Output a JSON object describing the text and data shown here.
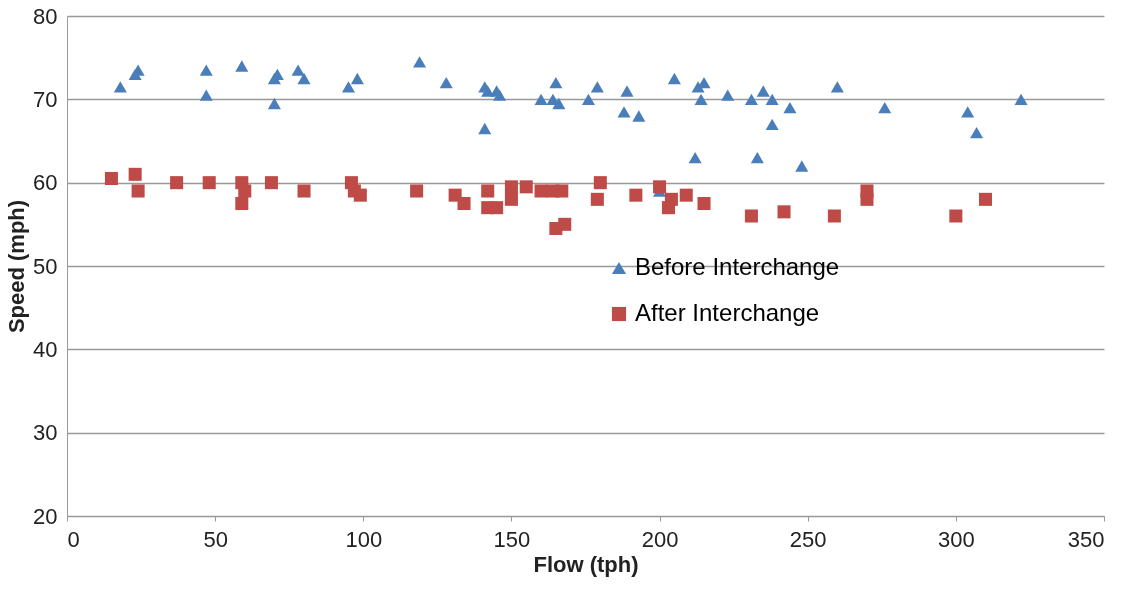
{
  "chart_data": {
    "type": "scatter",
    "xlabel": "Flow (tph)",
    "ylabel": "Speed (mph)",
    "xlim": [
      0,
      350
    ],
    "xticks": [
      0,
      50,
      100,
      150,
      200,
      250,
      300,
      350
    ],
    "ylim": [
      20,
      80
    ],
    "yticks": [
      20,
      30,
      40,
      50,
      60,
      70,
      80
    ],
    "grid": "y",
    "legend": "right",
    "series": [
      {
        "name": "Before Interchange",
        "color": "#4a7ebb",
        "marker": "triangle",
        "x": [
          18,
          23,
          24,
          47,
          47,
          59,
          70,
          70,
          71,
          78,
          80,
          95,
          98,
          119,
          128,
          141,
          141,
          142,
          145,
          146,
          160,
          164,
          165,
          166,
          176,
          179,
          188,
          189,
          193,
          200,
          205,
          212,
          213,
          214,
          215,
          223,
          231,
          233,
          235,
          238,
          238,
          244,
          248,
          260,
          276,
          304,
          307,
          322
        ],
        "values": [
          71.5,
          73,
          73.5,
          73.5,
          70.5,
          74,
          69.5,
          72.5,
          73,
          73.5,
          72.5,
          71.5,
          72.5,
          74.5,
          72,
          71.5,
          66.5,
          71,
          71,
          70.5,
          70,
          70,
          72,
          69.5,
          70,
          71.5,
          68.5,
          71,
          68,
          59,
          72.5,
          63,
          71.5,
          70,
          72,
          70.5,
          70,
          63,
          71,
          67,
          70,
          69,
          62,
          71.5,
          69,
          68.5,
          66,
          70
        ]
      },
      {
        "name": "After Interchange",
        "color": "#be4b48",
        "marker": "square",
        "x": [
          15,
          23,
          24,
          37,
          48,
          59,
          59,
          60,
          69,
          80,
          96,
          97,
          99,
          118,
          131,
          134,
          142,
          142,
          145,
          150,
          150,
          155,
          160,
          164,
          165,
          167,
          168,
          179,
          180,
          192,
          200,
          203,
          204,
          209,
          215,
          231,
          242,
          259,
          270,
          270,
          300,
          310
        ],
        "values": [
          60.5,
          61,
          59,
          60,
          60,
          60,
          57.5,
          59,
          60,
          59,
          60,
          59,
          58.5,
          59,
          58.5,
          57.5,
          59,
          57,
          57,
          58,
          59.5,
          59.5,
          59,
          59,
          54.5,
          59,
          55,
          58,
          60,
          58.5,
          59.5,
          57,
          58,
          58.5,
          57.5,
          56,
          56.5,
          56,
          59,
          58,
          56,
          58
        ]
      }
    ]
  }
}
